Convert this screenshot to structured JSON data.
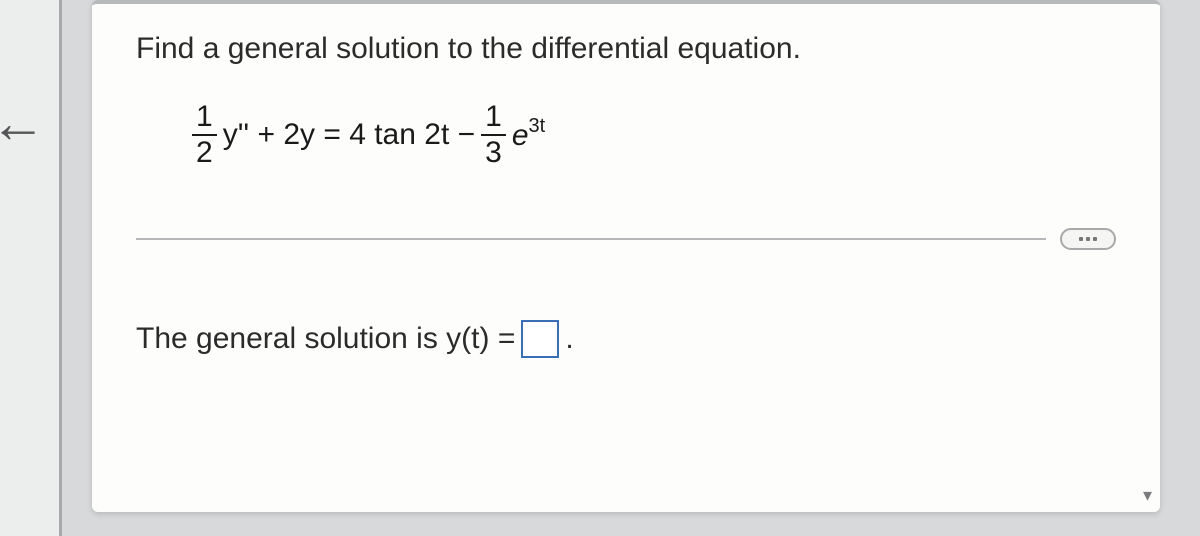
{
  "prompt": "Find a general solution to the differential equation.",
  "equation": {
    "frac1": {
      "num": "1",
      "den": "2"
    },
    "part_a": "y'' + 2y = 4 tan 2t −",
    "frac2": {
      "num": "1",
      "den": "3"
    },
    "e": "e",
    "exp": "3t"
  },
  "answer": {
    "lead": "The general solution is y(t) =",
    "trail": "."
  },
  "colors": {
    "page_bg": "#d8d9da",
    "card_bg": "#fdfdfc",
    "text": "#2b2b2b",
    "divider": "#b6b7b8",
    "input_border": "#3a6fb7"
  }
}
